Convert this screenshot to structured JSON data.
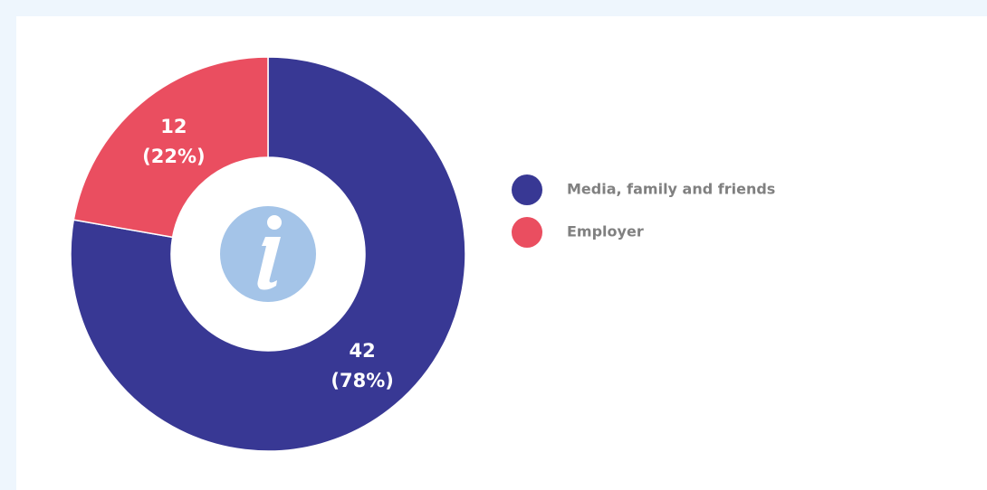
{
  "chart_data": {
    "type": "donut",
    "categories": [
      "Media, family and friends",
      "Employer"
    ],
    "values": [
      42,
      12
    ],
    "percent_labels": [
      "(78%)",
      "(22%)"
    ],
    "colors": [
      "#383894",
      "#ea4e60"
    ],
    "legend": "right"
  }
}
